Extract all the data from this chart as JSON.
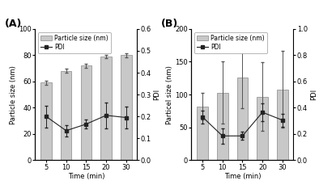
{
  "panel_A": {
    "label": "(A)",
    "time": [
      5,
      10,
      15,
      20,
      30
    ],
    "particle_size": [
      59,
      68,
      72,
      79,
      80
    ],
    "particle_size_err": [
      1.5,
      1.5,
      1.5,
      1.5,
      1.5
    ],
    "pdi": [
      0.2,
      0.135,
      0.165,
      0.205,
      0.195
    ],
    "pdi_err": [
      0.05,
      0.025,
      0.02,
      0.06,
      0.05
    ],
    "ylim_left": [
      0,
      100
    ],
    "ylim_right": [
      0.0,
      0.6
    ],
    "yticks_left": [
      0,
      20,
      40,
      60,
      80,
      100
    ],
    "yticks_right": [
      0.0,
      0.1,
      0.2,
      0.3,
      0.4,
      0.5,
      0.6
    ],
    "ylabel_left": "Particle size (nm)",
    "ylabel_right": "PDI",
    "xlabel": "Time (min)"
  },
  "panel_B": {
    "label": "(B)",
    "time": [
      5,
      10,
      15,
      20,
      30
    ],
    "particle_size": [
      82,
      103,
      126,
      97,
      108
    ],
    "particle_size_err": [
      20,
      47,
      47,
      52,
      58
    ],
    "pdi": [
      0.33,
      0.185,
      0.185,
      0.365,
      0.305
    ],
    "pdi_err": [
      0.05,
      0.06,
      0.03,
      0.07,
      0.05
    ],
    "ylim_left": [
      0,
      200
    ],
    "ylim_right": [
      0.0,
      1.0
    ],
    "yticks_left": [
      0,
      50,
      100,
      150,
      200
    ],
    "yticks_right": [
      0.0,
      0.2,
      0.4,
      0.6,
      0.8,
      1.0
    ],
    "ylabel_left": "Particel size (nm)",
    "ylabel_right": "PDI",
    "xlabel": "Time (min)"
  },
  "bar_color": "#c8c8c8",
  "bar_edgecolor": "#888888",
  "line_color": "#222222",
  "marker": "s",
  "markersize": 3,
  "linewidth": 0.8,
  "legend_labels": [
    "Particle size (nm)",
    "PDI"
  ],
  "label_fontsize": 6,
  "tick_fontsize": 6,
  "legend_fontsize": 5.5,
  "panel_label_fontsize": 9
}
